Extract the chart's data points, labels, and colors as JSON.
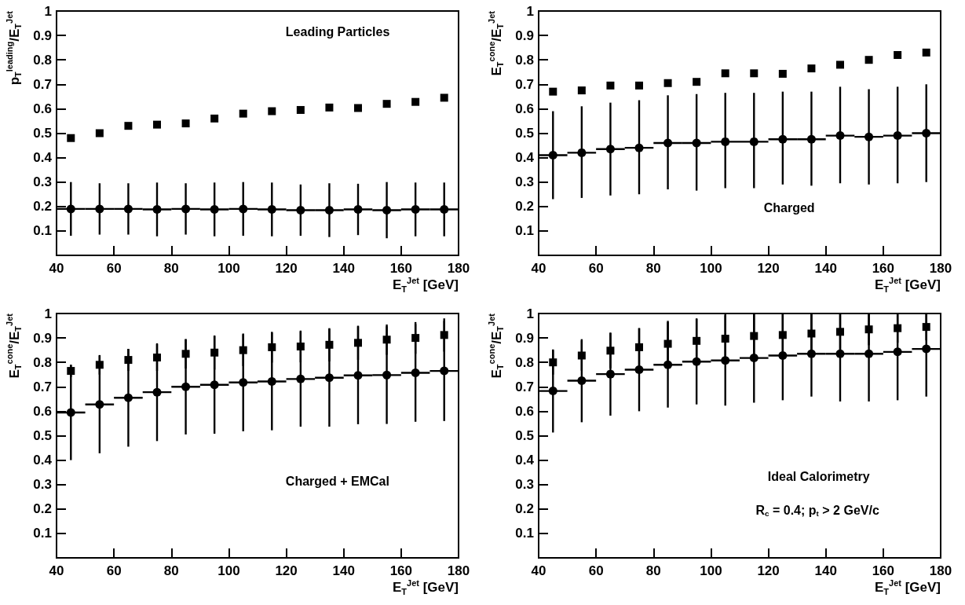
{
  "chart_data": [
    {
      "type": "scatter",
      "xlabel": "E$_{T}$$^{Jet}$ [GeV]",
      "ylabel": "p$_{T}$$^{leading}$/E$_{T}$$^{Jet}$",
      "xlim": [
        40,
        180
      ],
      "xticks": [
        40,
        60,
        80,
        100,
        120,
        140,
        160,
        180
      ],
      "ylim": [
        0,
        1
      ],
      "yticks": [
        0.1,
        0.2,
        0.3,
        0.4,
        0.5,
        0.6,
        0.7,
        0.8,
        0.9,
        1
      ],
      "x": [
        45,
        55,
        65,
        75,
        85,
        95,
        105,
        115,
        125,
        135,
        145,
        155,
        165,
        175
      ],
      "annotations": [
        "Leading Particles"
      ],
      "series": [
        {
          "color": "#000000",
          "marker": "square",
          "values": [
            0.48,
            0.5,
            0.53,
            0.535,
            0.54,
            0.56,
            0.58,
            0.59,
            0.595,
            0.605,
            0.603,
            0.62,
            0.628,
            0.645
          ]
        },
        {
          "color": "#000000",
          "marker": "circle",
          "values": [
            0.19,
            0.19,
            0.19,
            0.188,
            0.19,
            0.188,
            0.19,
            0.188,
            0.185,
            0.185,
            0.188,
            0.185,
            0.188,
            0.188
          ],
          "errors": [
            0.11,
            0.105,
            0.105,
            0.11,
            0.105,
            0.11,
            0.11,
            0.11,
            0.105,
            0.11,
            0.105,
            0.115,
            0.11,
            0.11
          ],
          "xerrors": [
            5,
            5,
            5,
            5,
            5,
            5,
            5,
            5,
            5,
            5,
            5,
            5,
            5,
            5
          ]
        }
      ]
    },
    {
      "type": "scatter",
      "xlabel": "E$_{T}$$^{Jet}$ [GeV]",
      "ylabel": "E$_{T}$$^{cone}$/E$_{T}$$^{Jet}$",
      "xlim": [
        40,
        180
      ],
      "xticks": [
        40,
        60,
        80,
        100,
        120,
        140,
        160,
        180
      ],
      "ylim": [
        0,
        1
      ],
      "yticks": [
        0.1,
        0.2,
        0.3,
        0.4,
        0.5,
        0.6,
        0.7,
        0.8,
        0.9,
        1
      ],
      "x": [
        45,
        55,
        65,
        75,
        85,
        95,
        105,
        115,
        125,
        135,
        145,
        155,
        165,
        175
      ],
      "annotations": [
        "Charged"
      ],
      "series": [
        {
          "color": "#000000",
          "marker": "square",
          "values": [
            0.67,
            0.675,
            0.695,
            0.695,
            0.705,
            0.71,
            0.745,
            0.745,
            0.743,
            0.765,
            0.78,
            0.8,
            0.82,
            0.83
          ]
        },
        {
          "color": "#000000",
          "marker": "circle",
          "values": [
            0.41,
            0.42,
            0.435,
            0.44,
            0.46,
            0.46,
            0.465,
            0.465,
            0.475,
            0.475,
            0.49,
            0.485,
            0.49,
            0.5
          ],
          "errors": [
            [
              0.23,
              0.59
            ],
            [
              0.235,
              0.61
            ],
            [
              0.245,
              0.625
            ],
            [
              0.25,
              0.635
            ],
            [
              0.27,
              0.655
            ],
            [
              0.265,
              0.66
            ],
            [
              0.275,
              0.665
            ],
            [
              0.275,
              0.665
            ],
            [
              0.29,
              0.67
            ],
            [
              0.285,
              0.67
            ],
            [
              0.295,
              0.69
            ],
            [
              0.29,
              0.68
            ],
            [
              0.295,
              0.69
            ],
            [
              0.3,
              0.7
            ]
          ],
          "xerrors": [
            5,
            5,
            5,
            5,
            5,
            5,
            5,
            5,
            5,
            5,
            5,
            5,
            5,
            5
          ]
        }
      ]
    },
    {
      "type": "scatter",
      "xlabel": "E$_{T}$$^{Jet}$ [GeV]",
      "ylabel": "E$_{T}$$^{cone}$/E$_{T}$$^{Jet}$",
      "xlim": [
        40,
        180
      ],
      "xticks": [
        40,
        60,
        80,
        100,
        120,
        140,
        160,
        180
      ],
      "ylim": [
        0,
        1
      ],
      "yticks": [
        0.1,
        0.2,
        0.3,
        0.4,
        0.5,
        0.6,
        0.7,
        0.8,
        0.9,
        1
      ],
      "x": [
        45,
        55,
        65,
        75,
        85,
        95,
        105,
        115,
        125,
        135,
        145,
        155,
        165,
        175
      ],
      "annotations": [
        "Charged + EMCal"
      ],
      "series": [
        {
          "color": "#000000",
          "marker": "square",
          "values": [
            0.765,
            0.79,
            0.81,
            0.82,
            0.835,
            0.84,
            0.85,
            0.862,
            0.865,
            0.872,
            0.88,
            0.893,
            0.9,
            0.912
          ],
          "errors": [
            0.025,
            0.04,
            0.045,
            0.055,
            0.06,
            0.07,
            0.065,
            0.063,
            0.065,
            0.068,
            0.07,
            0.062,
            0.065,
            0.068
          ]
        },
        {
          "color": "#000000",
          "marker": "circle",
          "values": [
            0.595,
            0.628,
            0.655,
            0.678,
            0.7,
            0.708,
            0.718,
            0.722,
            0.732,
            0.737,
            0.747,
            0.748,
            0.757,
            0.765
          ],
          "errors": [
            0.195,
            0.2,
            0.2,
            0.2,
            0.195,
            0.2,
            0.2,
            0.2,
            0.195,
            0.2,
            0.2,
            0.2,
            0.2,
            0.205
          ],
          "xerrors": [
            5,
            5,
            5,
            5,
            5,
            5,
            5,
            5,
            5,
            5,
            5,
            5,
            5,
            5
          ]
        }
      ]
    },
    {
      "type": "scatter",
      "xlabel": "E$_{T}$$^{Jet}$ [GeV]",
      "ylabel": "E$_{T}$$^{cone}$/E$_{T}$$^{Jet}$",
      "xlim": [
        40,
        180
      ],
      "xticks": [
        40,
        60,
        80,
        100,
        120,
        140,
        160,
        180
      ],
      "ylim": [
        0,
        1
      ],
      "yticks": [
        0.1,
        0.2,
        0.3,
        0.4,
        0.5,
        0.6,
        0.7,
        0.8,
        0.9,
        1
      ],
      "x": [
        45,
        55,
        65,
        75,
        85,
        95,
        105,
        115,
        125,
        135,
        145,
        155,
        165,
        175
      ],
      "annotations": [
        "Ideal Calorimetry",
        "R$_{c}$ = 0.4; p$_{t}$ > 2 GeV/c"
      ],
      "series": [
        {
          "color": "#000000",
          "marker": "square",
          "values": [
            0.8,
            0.828,
            0.848,
            0.862,
            0.876,
            0.888,
            0.897,
            0.908,
            0.912,
            0.918,
            0.925,
            0.935,
            0.94,
            0.945
          ],
          "errors": [
            0.05,
            0.062,
            0.072,
            0.078,
            0.094,
            0.092,
            [
              0.8,
              1
            ],
            [
              0.82,
              1
            ],
            [
              0.83,
              1
            ],
            [
              0.84,
              1
            ],
            [
              0.85,
              1
            ],
            [
              0.87,
              1
            ],
            [
              0.88,
              1
            ],
            [
              0.89,
              1
            ]
          ]
        },
        {
          "color": "#000000",
          "marker": "circle",
          "values": [
            0.683,
            0.725,
            0.752,
            0.77,
            0.79,
            0.803,
            0.808,
            0.818,
            0.828,
            0.835,
            0.835,
            0.835,
            0.843,
            0.855
          ],
          "errors": [
            0.17,
            0.17,
            0.17,
            0.17,
            0.175,
            0.175,
            0.185,
            [
              0.635,
              1
            ],
            [
              0.645,
              1
            ],
            [
              0.66,
              1
            ],
            [
              0.64,
              1
            ],
            [
              0.64,
              1
            ],
            [
              0.645,
              1
            ],
            [
              0.66,
              1
            ]
          ],
          "xerrors": [
            5,
            5,
            5,
            5,
            5,
            5,
            5,
            5,
            5,
            5,
            5,
            5,
            5,
            5
          ]
        }
      ]
    }
  ]
}
